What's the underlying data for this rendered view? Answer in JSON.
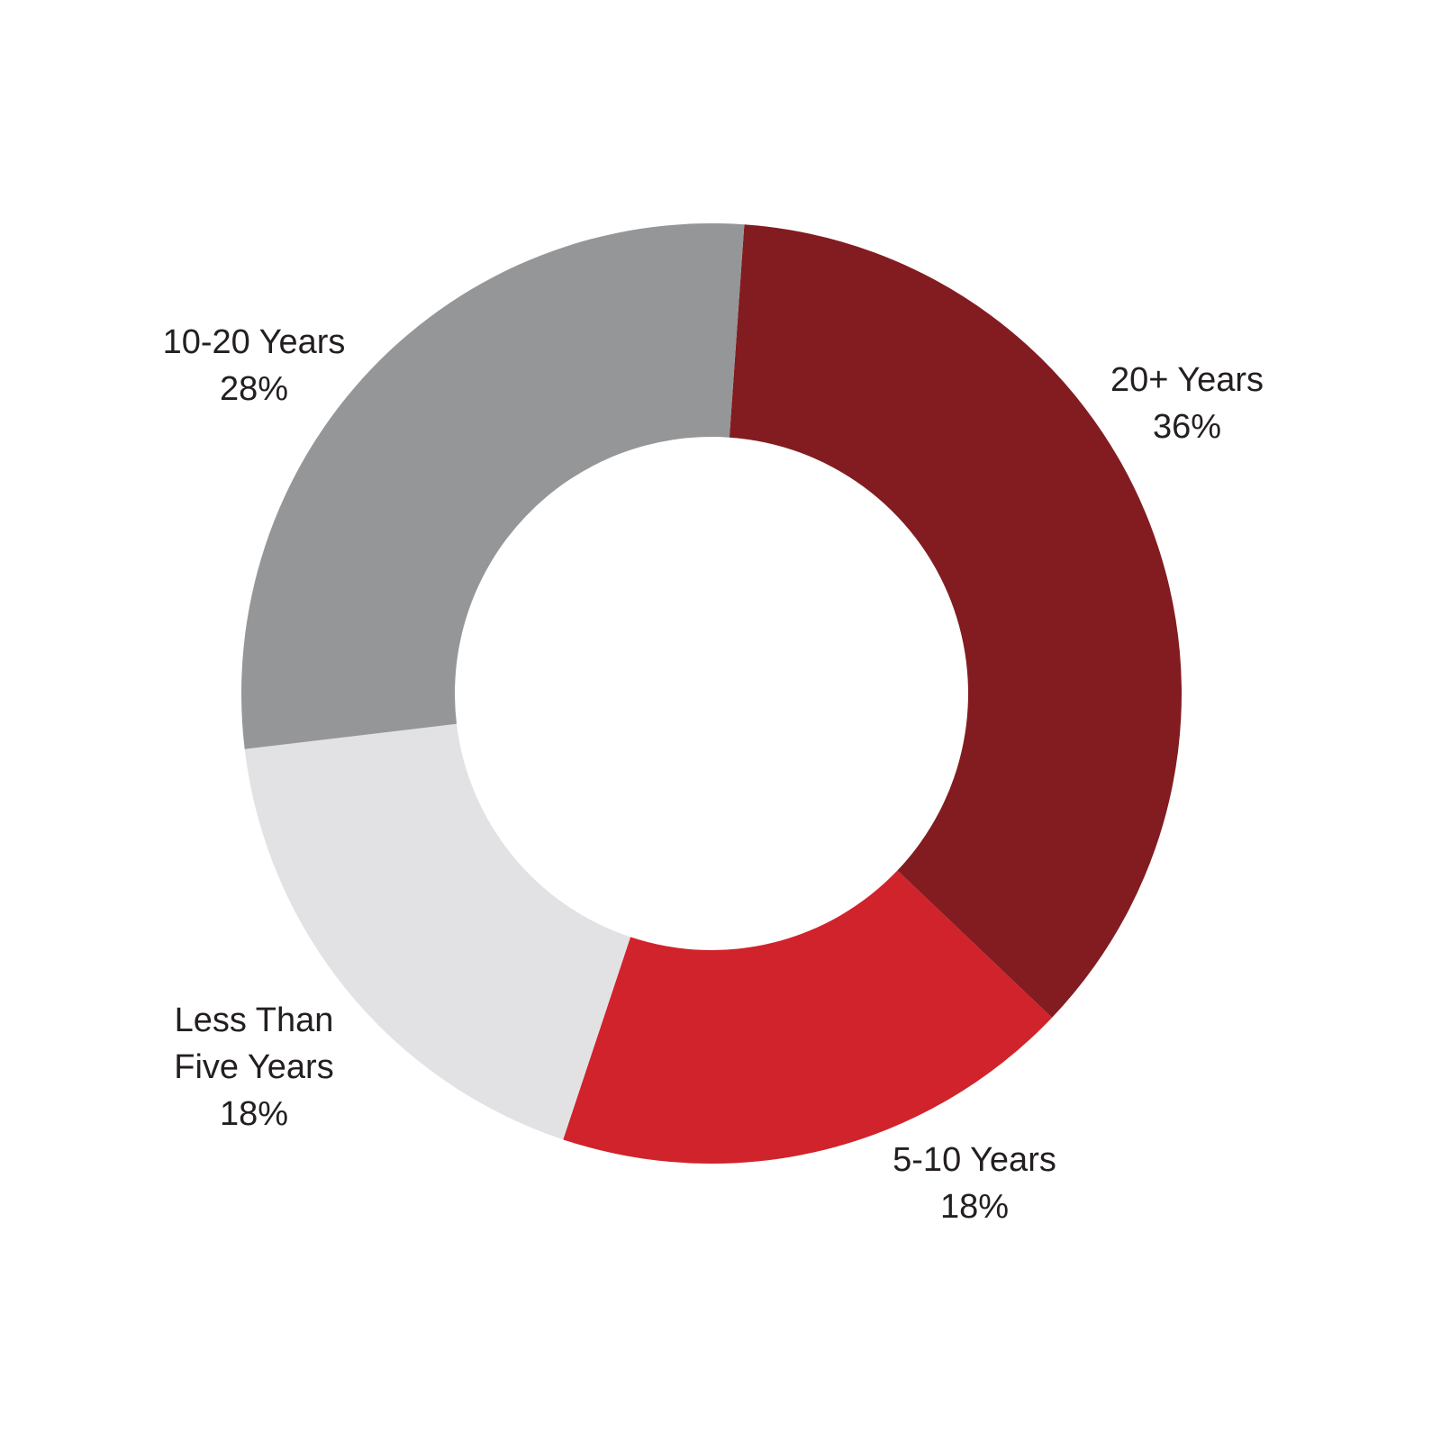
{
  "chart_data": {
    "type": "donut",
    "categories": [
      "20+ Years",
      "5-10 Years",
      "Less Than Five Years",
      "10-20 Years"
    ],
    "values": [
      36,
      18,
      18,
      28
    ],
    "value_labels": [
      "36%",
      "18%",
      "18%",
      "28%"
    ],
    "colors": [
      "#821c20",
      "#d0232b",
      "#e2e2e4",
      "#959698"
    ]
  }
}
